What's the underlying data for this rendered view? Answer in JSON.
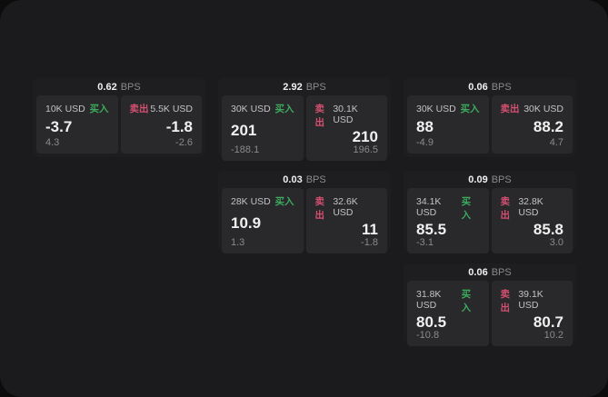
{
  "colors": {
    "page_bg": "#0c0c0c",
    "window_bg": "#1b1b1d",
    "card_bg": "#1e1e20",
    "panel_bg": "#29292b",
    "buy_green": "#3dab5e",
    "sell_red": "#d44f70"
  },
  "labels": {
    "bps_unit": "BPS",
    "buy": "买入",
    "sell": "卖出"
  },
  "cards": [
    {
      "bps": "0.62",
      "row": 1,
      "col": 1,
      "buy": {
        "amount": "10K USD",
        "value": "-3.7",
        "delta": "4.3"
      },
      "sell": {
        "amount": "5.5K USD",
        "value": "-1.8",
        "delta": "-2.6"
      }
    },
    {
      "bps": "2.92",
      "row": 1,
      "col": 2,
      "buy": {
        "amount": "30K USD",
        "value": "201",
        "delta": "-188.1"
      },
      "sell": {
        "amount": "30.1K USD",
        "value": "210",
        "delta": "196.5"
      }
    },
    {
      "bps": "0.06",
      "row": 1,
      "col": 3,
      "buy": {
        "amount": "30K USD",
        "value": "88",
        "delta": "-4.9"
      },
      "sell": {
        "amount": "30K USD",
        "value": "88.2",
        "delta": "4.7"
      }
    },
    {
      "bps": "0.03",
      "row": 2,
      "col": 2,
      "buy": {
        "amount": "28K USD",
        "value": "10.9",
        "delta": "1.3"
      },
      "sell": {
        "amount": "32.6K USD",
        "value": "11",
        "delta": "-1.8"
      }
    },
    {
      "bps": "0.09",
      "row": 2,
      "col": 3,
      "buy": {
        "amount": "34.1K USD",
        "value": "85.5",
        "delta": "-3.1"
      },
      "sell": {
        "amount": "32.8K USD",
        "value": "85.8",
        "delta": "3.0"
      }
    },
    {
      "bps": "0.06",
      "row": 3,
      "col": 3,
      "buy": {
        "amount": "31.8K USD",
        "value": "80.5",
        "delta": "-10.8"
      },
      "sell": {
        "amount": "39.1K USD",
        "value": "80.7",
        "delta": "10.2"
      }
    }
  ]
}
